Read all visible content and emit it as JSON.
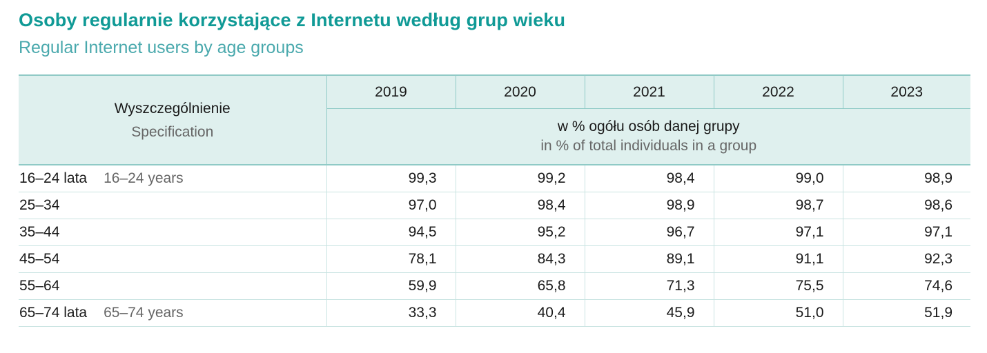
{
  "title": {
    "pl": "Osoby regularnie korzystające z Internetu według grup wieku",
    "en": "Regular Internet users by age groups"
  },
  "table": {
    "spec_header": {
      "pl": "Wyszczególnienie",
      "en": "Specification"
    },
    "years": [
      "2019",
      "2020",
      "2021",
      "2022",
      "2023"
    ],
    "unit": {
      "pl": "w % ogółu osób danej grupy",
      "en": "in % of total individuals in a group"
    },
    "rows": [
      {
        "label_pl": "16–24 lata",
        "label_en": "16–24 years",
        "values": [
          "99,3",
          "99,2",
          "98,4",
          "99,0",
          "98,9"
        ]
      },
      {
        "label_pl": "25–34",
        "label_en": "",
        "values": [
          "97,0",
          "98,4",
          "98,9",
          "98,7",
          "98,6"
        ]
      },
      {
        "label_pl": "35–44",
        "label_en": "",
        "values": [
          "94,5",
          "95,2",
          "96,7",
          "97,1",
          "97,1"
        ]
      },
      {
        "label_pl": "45–54",
        "label_en": "",
        "values": [
          "78,1",
          "84,3",
          "89,1",
          "91,1",
          "92,3"
        ]
      },
      {
        "label_pl": "55–64",
        "label_en": "",
        "values": [
          "59,9",
          "65,8",
          "71,3",
          "75,5",
          "74,6"
        ]
      },
      {
        "label_pl": "65–74 lata",
        "label_en": "65–74 years",
        "values": [
          "33,3",
          "40,4",
          "45,9",
          "51,0",
          "51,9"
        ]
      }
    ]
  },
  "colors": {
    "title_pl": "#109a96",
    "title_en": "#4aa9ad",
    "header_bg": "#dff0ee",
    "header_border": "#8fcac6",
    "row_border": "#c8e3e1",
    "secondary_text": "#666666"
  }
}
